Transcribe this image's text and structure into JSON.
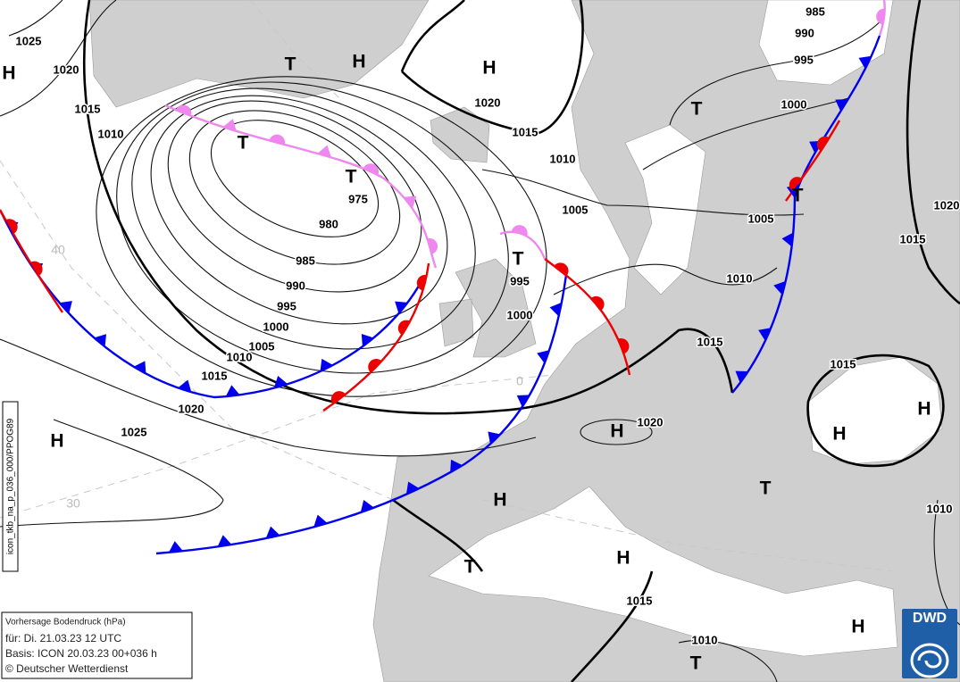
{
  "isobar_labels": [
    1025,
    1020,
    1015,
    1010,
    975,
    980,
    985,
    990,
    995,
    1000,
    1005,
    1010,
    1015,
    1020,
    1025,
    985,
    990,
    995,
    1000,
    1020,
    1015,
    1010,
    1005,
    995,
    1000,
    1005,
    1010,
    1015,
    1020,
    1015,
    1015,
    1020,
    1010,
    1015,
    1010
  ],
  "pressure_centers": [
    "H",
    "T",
    "H",
    "H",
    "T",
    "T",
    "T",
    "T",
    "T",
    "H",
    "H",
    "H",
    "H",
    "T",
    "H",
    "T",
    "H",
    "H",
    "T"
  ],
  "grid_labels": [
    40,
    30,
    0
  ],
  "info_box": {
    "title": "Vorhersage Bodendruck (hPa)",
    "valid": "für:  Di. 21.03.23  12 UTC",
    "basis": "Basis: ICON  20.03.23 00+036 h",
    "copyright": "© Deutscher Wetterdienst"
  },
  "model_id": "icon_tkb_na_p_036_000/PPOG89",
  "logo": "DWD"
}
